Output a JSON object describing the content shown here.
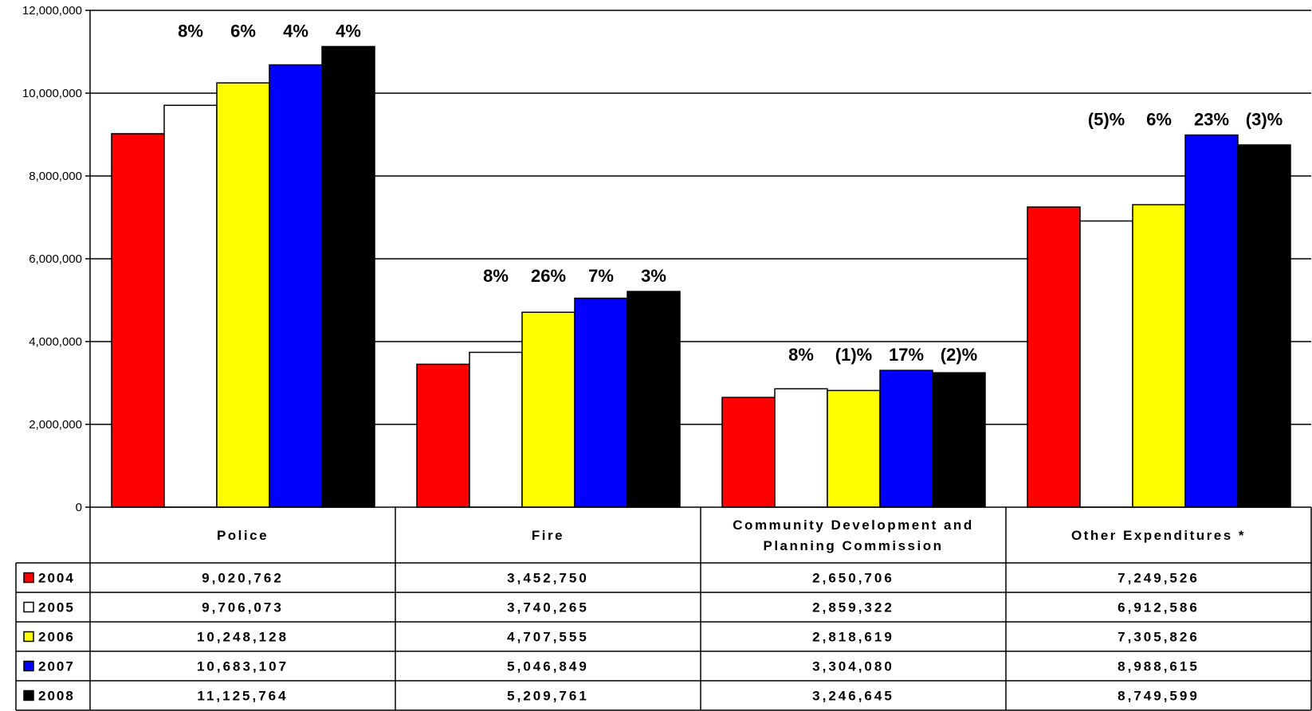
{
  "chart_data": {
    "type": "bar",
    "categories": [
      "Police",
      "Fire",
      "Community Development and Planning Commission",
      "Other Expenditures *"
    ],
    "category_label_lines": [
      [
        "Police"
      ],
      [
        "Fire"
      ],
      [
        "Community Development and",
        "Planning Commission"
      ],
      [
        "Other Expenditures *"
      ]
    ],
    "series": [
      {
        "name": "2004",
        "color": "#ff0000",
        "values": [
          9020762,
          3452750,
          2650706,
          7249526
        ]
      },
      {
        "name": "2005",
        "color": "#ffffff",
        "values": [
          9706073,
          3740265,
          2859322,
          6912586
        ]
      },
      {
        "name": "2006",
        "color": "#ffff00",
        "values": [
          10248128,
          4707555,
          2818619,
          7305826
        ]
      },
      {
        "name": "2007",
        "color": "#0000ff",
        "values": [
          10683107,
          5046849,
          3304080,
          8988615
        ]
      },
      {
        "name": "2008",
        "color": "#000000",
        "values": [
          11125764,
          5209761,
          3246645,
          8749599
        ]
      }
    ],
    "table_values": [
      [
        "9,020,762",
        "3,452,750",
        "2,650,706",
        "7,249,526"
      ],
      [
        "9,706,073",
        "3,740,265",
        "2,859,322",
        "6,912,586"
      ],
      [
        "10,248,128",
        "4,707,555",
        "2,818,619",
        "7,305,826"
      ],
      [
        "10,683,107",
        "5,046,849",
        "3,304,080",
        "8,988,615"
      ],
      [
        "11,125,764",
        "5,209,761",
        "3,246,645",
        "8,749,599"
      ]
    ],
    "percent_change_labels": [
      [
        "8%",
        "6%",
        "4%",
        "4%"
      ],
      [
        "8%",
        "26%",
        "7%",
        "3%"
      ],
      [
        "8%",
        "(1)%",
        "17%",
        "(2)%"
      ],
      [
        "(5)%",
        "6%",
        "23%",
        "(3)%"
      ]
    ],
    "y_ticks": [
      "0",
      "2,000,000",
      "4,000,000",
      "6,000,000",
      "8,000,000",
      "10,000,000",
      "12,000,000"
    ],
    "y_tick_values": [
      0,
      2000000,
      4000000,
      6000000,
      8000000,
      10000000,
      12000000
    ],
    "ylim": [
      0,
      12000000
    ],
    "grid": true,
    "legend": "data-table",
    "title": "",
    "xlabel": "",
    "ylabel": ""
  }
}
